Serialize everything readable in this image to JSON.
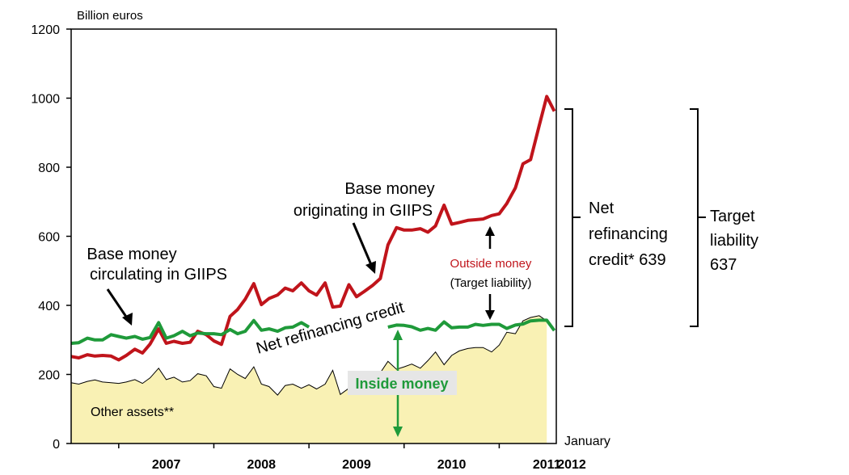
{
  "chart_data": {
    "type": "line",
    "unit_label": "Billion euros",
    "ylim": [
      0,
      1200
    ],
    "y_ticks": [
      0,
      200,
      400,
      600,
      800,
      1000,
      1200
    ],
    "x_ticks": [
      {
        "label": "2007",
        "x": 2007.0
      },
      {
        "label": "2008",
        "x": 2008.0
      },
      {
        "label": "2009",
        "x": 2009.0
      },
      {
        "label": "2010",
        "x": 2010.0
      },
      {
        "label": "2011",
        "x": 2011.0
      },
      {
        "label": "2012",
        "x": 2012.0
      }
    ],
    "x_end_label": "January",
    "series": [
      {
        "name": "Base money originating in GIIPS",
        "color": "#c0141b",
        "type": "line",
        "values": [
          [
            2006.5,
            252
          ],
          [
            2006.58,
            248
          ],
          [
            2006.67,
            257
          ],
          [
            2006.75,
            253
          ],
          [
            2006.83,
            255
          ],
          [
            2006.92,
            253
          ],
          [
            2007.0,
            242
          ],
          [
            2007.08,
            255
          ],
          [
            2007.17,
            273
          ],
          [
            2007.25,
            262
          ],
          [
            2007.33,
            288
          ],
          [
            2007.42,
            332
          ],
          [
            2007.5,
            290
          ],
          [
            2007.58,
            296
          ],
          [
            2007.67,
            290
          ],
          [
            2007.75,
            293
          ],
          [
            2007.83,
            325
          ],
          [
            2007.92,
            315
          ],
          [
            2008.0,
            297
          ],
          [
            2008.08,
            287
          ],
          [
            2008.17,
            368
          ],
          [
            2008.25,
            388
          ],
          [
            2008.33,
            418
          ],
          [
            2008.42,
            463
          ],
          [
            2008.5,
            402
          ],
          [
            2008.58,
            420
          ],
          [
            2008.67,
            430
          ],
          [
            2008.75,
            450
          ],
          [
            2008.83,
            442
          ],
          [
            2008.92,
            465
          ],
          [
            2009.0,
            442
          ],
          [
            2009.08,
            430
          ],
          [
            2009.17,
            465
          ],
          [
            2009.25,
            395
          ],
          [
            2009.33,
            398
          ],
          [
            2009.42,
            460
          ],
          [
            2009.5,
            425
          ],
          [
            2009.58,
            440
          ],
          [
            2009.67,
            458
          ],
          [
            2009.75,
            478
          ],
          [
            2009.83,
            575
          ],
          [
            2009.92,
            625
          ],
          [
            2010.0,
            618
          ],
          [
            2010.08,
            618
          ],
          [
            2010.17,
            622
          ],
          [
            2010.25,
            612
          ],
          [
            2010.33,
            630
          ],
          [
            2010.42,
            690
          ],
          [
            2010.5,
            635
          ],
          [
            2010.58,
            640
          ],
          [
            2010.67,
            646
          ],
          [
            2010.75,
            648
          ],
          [
            2010.83,
            650
          ],
          [
            2010.92,
            660
          ],
          [
            2011.0,
            665
          ],
          [
            2011.08,
            695
          ],
          [
            2011.17,
            740
          ],
          [
            2011.25,
            810
          ],
          [
            2011.33,
            822
          ],
          [
            2011.42,
            920
          ],
          [
            2011.5,
            1005
          ],
          [
            2011.58,
            962
          ]
        ]
      },
      {
        "name": "Base money circulating in GIIPS",
        "color": "#1f9a3a",
        "type": "line",
        "values": [
          [
            2006.5,
            290
          ],
          [
            2006.58,
            292
          ],
          [
            2006.67,
            305
          ],
          [
            2006.75,
            300
          ],
          [
            2006.83,
            300
          ],
          [
            2006.92,
            315
          ],
          [
            2007.0,
            310
          ],
          [
            2007.08,
            305
          ],
          [
            2007.17,
            310
          ],
          [
            2007.25,
            302
          ],
          [
            2007.33,
            307
          ],
          [
            2007.42,
            350
          ],
          [
            2007.5,
            305
          ],
          [
            2007.58,
            312
          ],
          [
            2007.67,
            325
          ],
          [
            2007.75,
            312
          ],
          [
            2007.83,
            320
          ],
          [
            2007.92,
            318
          ],
          [
            2008.0,
            318
          ],
          [
            2008.08,
            315
          ],
          [
            2008.17,
            330
          ],
          [
            2008.25,
            318
          ],
          [
            2008.33,
            325
          ],
          [
            2008.42,
            356
          ],
          [
            2008.5,
            328
          ],
          [
            2008.58,
            332
          ],
          [
            2008.67,
            325
          ],
          [
            2008.75,
            335
          ],
          [
            2008.83,
            337
          ],
          [
            2008.92,
            350
          ],
          [
            2009.0,
            337
          ],
          null,
          [
            2009.83,
            337
          ],
          [
            2009.92,
            343
          ],
          [
            2010.0,
            342
          ],
          [
            2010.08,
            338
          ],
          [
            2010.17,
            328
          ],
          [
            2010.25,
            333
          ],
          [
            2010.33,
            328
          ],
          [
            2010.42,
            352
          ],
          [
            2010.5,
            335
          ],
          [
            2010.58,
            337
          ],
          [
            2010.67,
            337
          ],
          [
            2010.75,
            345
          ],
          [
            2010.83,
            342
          ],
          [
            2010.92,
            345
          ],
          [
            2011.0,
            345
          ],
          [
            2011.08,
            333
          ],
          [
            2011.17,
            343
          ],
          [
            2011.25,
            346
          ],
          [
            2011.33,
            355
          ],
          [
            2011.42,
            357
          ],
          [
            2011.5,
            357
          ],
          [
            2011.58,
            327
          ]
        ]
      },
      {
        "name": "Other assets**",
        "color": "#f9f1b4",
        "type": "area",
        "values": [
          [
            2006.5,
            176
          ],
          [
            2006.58,
            172
          ],
          [
            2006.67,
            180
          ],
          [
            2006.75,
            184
          ],
          [
            2006.83,
            178
          ],
          [
            2006.92,
            176
          ],
          [
            2007.0,
            174
          ],
          [
            2007.08,
            178
          ],
          [
            2007.17,
            185
          ],
          [
            2007.25,
            174
          ],
          [
            2007.33,
            190
          ],
          [
            2007.42,
            218
          ],
          [
            2007.5,
            185
          ],
          [
            2007.58,
            192
          ],
          [
            2007.67,
            178
          ],
          [
            2007.75,
            182
          ],
          [
            2007.83,
            202
          ],
          [
            2007.92,
            196
          ],
          [
            2008.0,
            165
          ],
          [
            2008.08,
            160
          ],
          [
            2008.17,
            216
          ],
          [
            2008.25,
            200
          ],
          [
            2008.33,
            188
          ],
          [
            2008.42,
            222
          ],
          [
            2008.5,
            172
          ],
          [
            2008.58,
            165
          ],
          [
            2008.67,
            140
          ],
          [
            2008.75,
            168
          ],
          [
            2008.83,
            172
          ],
          [
            2008.92,
            160
          ],
          [
            2009.0,
            170
          ],
          [
            2009.08,
            158
          ],
          [
            2009.17,
            172
          ],
          [
            2009.25,
            212
          ],
          [
            2009.33,
            142
          ],
          [
            2009.42,
            160
          ],
          [
            2009.5,
            168
          ],
          [
            2009.58,
            172
          ],
          [
            2009.67,
            188
          ],
          [
            2009.75,
            205
          ],
          [
            2009.83,
            238
          ],
          [
            2009.92,
            215
          ],
          [
            2010.0,
            222
          ],
          [
            2010.08,
            230
          ],
          [
            2010.17,
            218
          ],
          [
            2010.25,
            240
          ],
          [
            2010.33,
            265
          ],
          [
            2010.42,
            228
          ],
          [
            2010.5,
            255
          ],
          [
            2010.58,
            268
          ],
          [
            2010.67,
            275
          ],
          [
            2010.75,
            278
          ],
          [
            2010.83,
            278
          ],
          [
            2010.92,
            265
          ],
          [
            2011.0,
            285
          ],
          [
            2011.08,
            322
          ],
          [
            2011.17,
            318
          ],
          [
            2011.25,
            355
          ],
          [
            2011.33,
            365
          ],
          [
            2011.42,
            370
          ],
          [
            2011.5,
            355
          ]
        ]
      }
    ],
    "labels": {
      "originating_line1": "Base money",
      "originating_line2": "originating in GIIPS",
      "circulating_line1": "Base money",
      "circulating_line2": "circulating in GIIPS",
      "net_refinancing_credit": "Net refinancing credit",
      "outside_money": "Outside money",
      "target_liability_paren": "(Target liability)",
      "inside_money": "Inside money",
      "other_assets": "Other assets**",
      "net_ref_line1": "Net",
      "net_ref_line2": "refinancing",
      "net_ref_line3": "credit* 639",
      "target_line1": "Target",
      "target_line2": "liability",
      "target_line3": "637"
    },
    "colors": {
      "outside_money": "#c0141b",
      "inside_money": "#1f9a3a",
      "inside_money_box": "#e6e6e6",
      "area_fill": "#f9f1b4",
      "axis": "#000000"
    },
    "grid": false
  }
}
